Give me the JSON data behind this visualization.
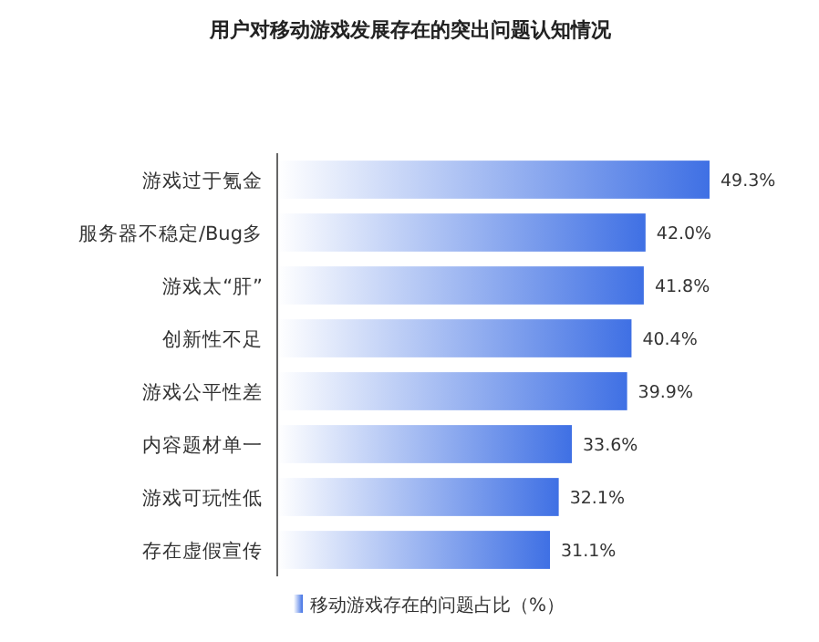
{
  "chart_data": {
    "type": "bar",
    "orientation": "horizontal",
    "title": "用户对移动游戏发展存在的突出问题认知情况",
    "categories": [
      "游戏过于氪金",
      "服务器不稳定/Bug多",
      "游戏太“肝”",
      "创新性不足",
      "游戏公平性差",
      "内容题材单一",
      "游戏可玩性低",
      "存在虚假宣传"
    ],
    "series": [
      {
        "name": "移动游戏存在的问题占比（%）",
        "color": "#3f70e4",
        "values": [
          49.3,
          42.0,
          41.8,
          40.4,
          39.9,
          33.6,
          32.1,
          31.1
        ],
        "value_labels": [
          "49.3%",
          "42.0%",
          "41.8%",
          "40.4%",
          "39.9%",
          "33.6%",
          "32.1%",
          "31.1%"
        ]
      }
    ],
    "legend": "bottom"
  }
}
